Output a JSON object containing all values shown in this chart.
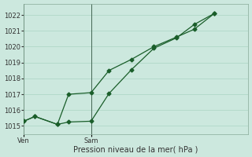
{
  "bg_color": "#cce8de",
  "grid_color": "#aad4c4",
  "line_color": "#1a5e2a",
  "ylim": [
    1014.5,
    1022.7
  ],
  "yticks": [
    1015,
    1016,
    1017,
    1018,
    1019,
    1020,
    1021,
    1022
  ],
  "xlabel": "Pression niveau de la mer( hPa )",
  "xlim": [
    0,
    10
  ],
  "ven_x": 0,
  "sam_x": 3,
  "line1_x": [
    0.0,
    0.5,
    1.5,
    2.0,
    3.0,
    3.8,
    4.8,
    5.8,
    6.8,
    7.6,
    8.5
  ],
  "line1_y": [
    1015.3,
    1015.6,
    1015.1,
    1017.0,
    1017.1,
    1018.5,
    1019.2,
    1020.0,
    1020.6,
    1021.1,
    1022.1
  ],
  "line2_x": [
    0.0,
    0.5,
    1.5,
    2.0,
    3.0,
    3.8,
    4.8,
    5.8,
    6.8,
    7.6,
    8.5
  ],
  "line2_y": [
    1015.3,
    1015.6,
    1015.1,
    1015.25,
    1015.3,
    1017.05,
    1018.55,
    1019.9,
    1020.55,
    1021.4,
    1022.1
  ],
  "tick_fontsize": 6,
  "xlabel_fontsize": 7
}
